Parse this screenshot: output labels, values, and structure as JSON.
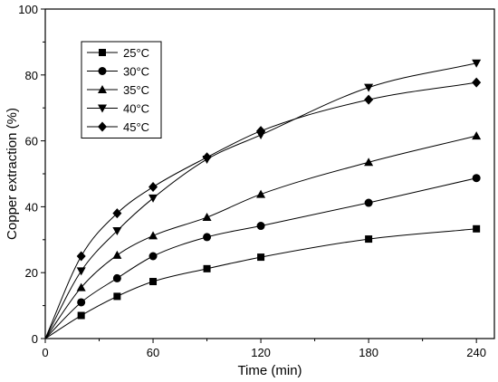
{
  "chart_data": {
    "type": "line",
    "xlabel": "Time (min)",
    "ylabel": "Copper extraction (%)",
    "xlim": [
      0,
      250
    ],
    "ylim": [
      0,
      100
    ],
    "xticks": [
      0,
      60,
      120,
      180,
      240
    ],
    "yticks": [
      0,
      20,
      40,
      60,
      80,
      100
    ],
    "grid": false,
    "legend_position": "top-left",
    "x": [
      0,
      20,
      40,
      60,
      90,
      120,
      180,
      240
    ],
    "series": [
      {
        "name": "25°C",
        "marker": "square",
        "values": [
          0,
          7.0,
          12.8,
          17.3,
          21.2,
          24.7,
          30.2,
          33.3
        ]
      },
      {
        "name": "30°C",
        "marker": "circle",
        "values": [
          0,
          11.0,
          18.3,
          25.0,
          30.8,
          34.2,
          41.2,
          48.7
        ]
      },
      {
        "name": "35°C",
        "marker": "triangle-up",
        "values": [
          0,
          15.5,
          25.3,
          31.2,
          36.8,
          43.8,
          53.5,
          61.5
        ]
      },
      {
        "name": "40°C",
        "marker": "triangle-down",
        "values": [
          0,
          20.5,
          32.7,
          42.6,
          54.4,
          61.8,
          76.2,
          83.6
        ]
      },
      {
        "name": "45°C",
        "marker": "diamond",
        "values": [
          0,
          25.0,
          38.0,
          46.0,
          55.0,
          63.0,
          72.5,
          77.7
        ]
      }
    ]
  }
}
